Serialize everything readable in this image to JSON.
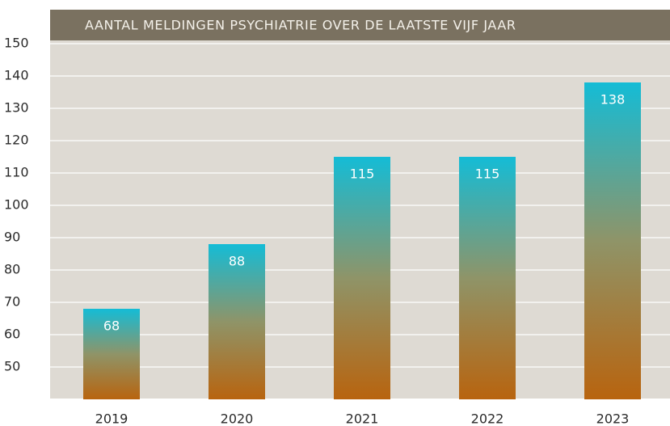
{
  "chart_data": {
    "type": "bar",
    "title": "AANTAL MELDINGEN PSYCHIATRIE OVER DE LAATSTE VIJF JAAR",
    "categories": [
      "2019",
      "2020",
      "2021",
      "2022",
      "2023"
    ],
    "values": [
      68,
      88,
      115,
      115,
      138
    ],
    "color": [
      "#14bcd6",
      "#b8640f"
    ],
    "ylim": [
      40,
      150
    ],
    "yticks": [
      50,
      60,
      70,
      80,
      90,
      100,
      110,
      120,
      130,
      140,
      150
    ],
    "grid": true
  }
}
